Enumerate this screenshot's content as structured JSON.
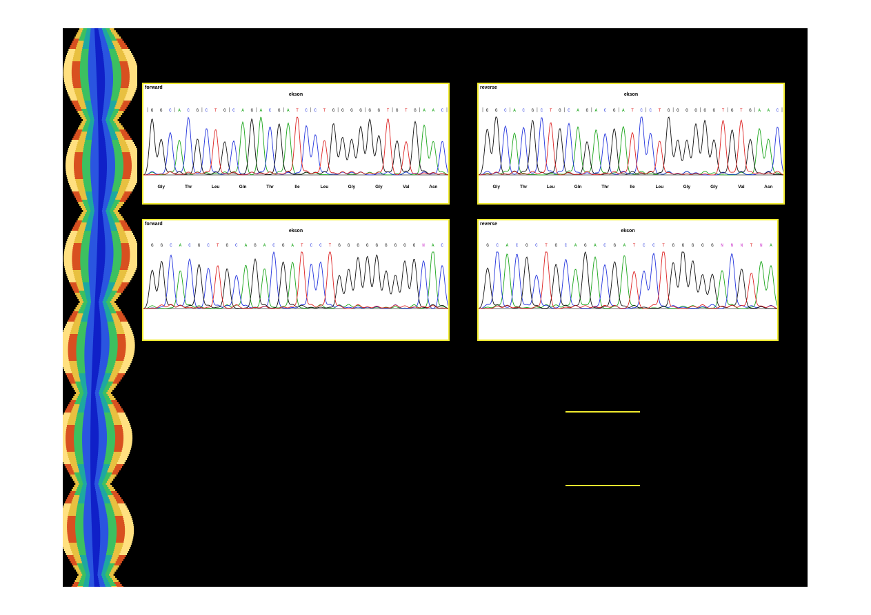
{
  "panels": [
    {
      "id": "p1",
      "direction": "forward",
      "region": "ekson",
      "bases": [
        "G",
        "G",
        "C",
        "A",
        "C",
        "G",
        "C",
        "T",
        "G",
        "C",
        "A",
        "G",
        "A",
        "C",
        "G",
        "A",
        "T",
        "C",
        "C",
        "T",
        "G",
        "G",
        "G",
        "G",
        "G",
        "G",
        "T",
        "G",
        "T",
        "G",
        "A",
        "A",
        "C"
      ],
      "aminoacids": [
        "Gly",
        "Thr",
        "Leu",
        "Gln",
        "Thr",
        "Ile",
        "Leu",
        "Gly",
        "Gly",
        "Val",
        "Asn"
      ],
      "codon_brackets": true
    },
    {
      "id": "p2",
      "direction": "reverse",
      "region": "ekson",
      "bases": [
        "G",
        "G",
        "C",
        "A",
        "C",
        "G",
        "C",
        "T",
        "G",
        "C",
        "A",
        "G",
        "A",
        "C",
        "G",
        "A",
        "T",
        "C",
        "C",
        "T",
        "G",
        "G",
        "G",
        "G",
        "G",
        "G",
        "T",
        "G",
        "T",
        "G",
        "A",
        "A",
        "C"
      ],
      "aminoacids": [
        "Gly",
        "Thr",
        "Leu",
        "Gln",
        "Thr",
        "Ile",
        "Leu",
        "Gly",
        "Gly",
        "Val",
        "Asn"
      ],
      "codon_brackets": true
    },
    {
      "id": "p3",
      "direction": "forward",
      "region": "ekson",
      "bases": [
        "G",
        "G",
        "C",
        "A",
        "C",
        "G",
        "C",
        "T",
        "G",
        "C",
        "A",
        "G",
        "A",
        "C",
        "G",
        "A",
        "T",
        "C",
        "C",
        "T",
        "G",
        "G",
        "G",
        "G",
        "G",
        "G",
        "G",
        "G",
        "G",
        "N",
        "A",
        "C"
      ],
      "aminoacids": [],
      "codon_brackets": false
    },
    {
      "id": "p4",
      "direction": "reverse",
      "region": "ekson",
      "bases": [
        "G",
        "C",
        "A",
        "C",
        "G",
        "C",
        "T",
        "G",
        "C",
        "A",
        "G",
        "A",
        "C",
        "G",
        "A",
        "T",
        "C",
        "C",
        "T",
        "G",
        "G",
        "G",
        "G",
        "G",
        "N",
        "N",
        "N",
        "T",
        "N",
        "A"
      ],
      "aminoacids": [],
      "codon_brackets": false
    }
  ],
  "colors": {
    "A": "#1aa51a",
    "C": "#2233dd",
    "G": "#111111",
    "T": "#dd2222",
    "N": "#cc33cc",
    "panel_border": "#f2ec2e",
    "background": "#000000"
  }
}
